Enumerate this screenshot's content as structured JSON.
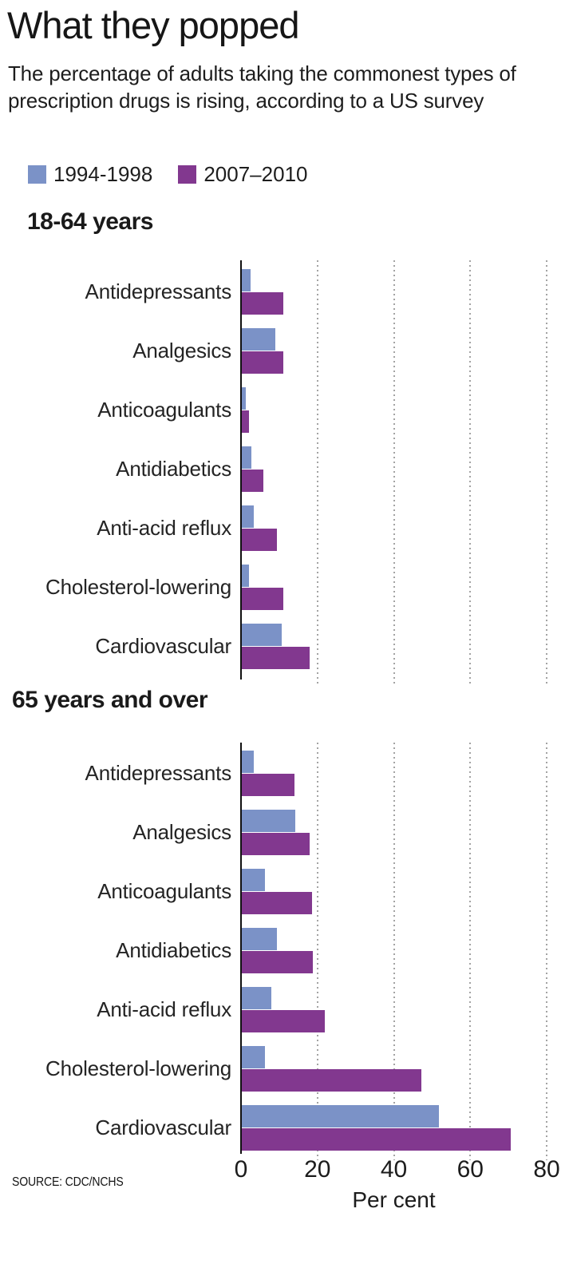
{
  "header": {
    "title": "What they popped",
    "subtitle": "The percentage of adults taking the commonest types of prescription drugs is rising, according to a US survey"
  },
  "legend": [
    {
      "label": "1994-1998",
      "color": "#7b92c7"
    },
    {
      "label": "2007–2010",
      "color": "#82388f"
    }
  ],
  "chart_data": {
    "type": "bar",
    "orientation": "horizontal",
    "title": "What they popped",
    "xlabel": "Per cent",
    "xlim": [
      0,
      80
    ],
    "xticks": [
      0,
      20,
      40,
      60,
      80
    ],
    "gridlines": "dotted-vertical",
    "legend_position": "top",
    "categories": [
      "Antidepressants",
      "Analgesics",
      "Anticoagulants",
      "Antidiabetics",
      "Anti-acid reflux",
      "Cholesterol-lowering",
      "Cardiovascular"
    ],
    "groups": [
      {
        "title": "18-64 years",
        "series": [
          {
            "name": "1994-1998",
            "values": [
              2.2,
              8.8,
              1.0,
              2.5,
              3.1,
              1.8,
              10.4
            ]
          },
          {
            "name": "2007–2010",
            "values": [
              10.8,
              10.8,
              1.9,
              5.6,
              9.2,
              10.9,
              17.8
            ]
          }
        ]
      },
      {
        "title": "65 years and over",
        "series": [
          {
            "name": "1994-1998",
            "values": [
              3.1,
              13.9,
              6.1,
              9.1,
              7.7,
              6.0,
              51.6
            ]
          },
          {
            "name": "2007–2010",
            "values": [
              13.8,
              17.8,
              18.3,
              18.5,
              21.7,
              46.9,
              70.4
            ]
          }
        ]
      }
    ]
  },
  "footer": {
    "source": "SOURCE: CDC/NCHS"
  }
}
